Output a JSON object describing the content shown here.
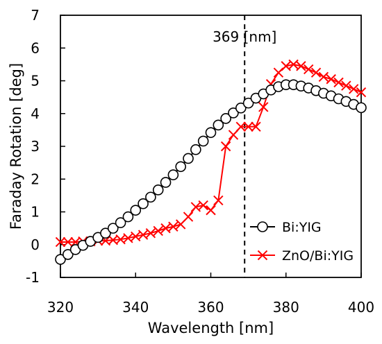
{
  "chart_data": {
    "type": "line",
    "xlabel": "Wavelength [nm]",
    "ylabel": "Faraday Rotation [deg]",
    "xlim": [
      320,
      400
    ],
    "ylim": [
      -1,
      7
    ],
    "xticks": [
      320,
      340,
      360,
      380,
      400
    ],
    "yticks": [
      -1,
      0,
      1,
      2,
      3,
      4,
      5,
      6,
      7
    ],
    "grid": false,
    "legend_position": "lower-right",
    "annotation": {
      "x": 369,
      "label": "369 [nm]",
      "style": "dashed-vertical-line"
    },
    "series": [
      {
        "name": "Bi:YIG",
        "color": "#000000",
        "marker": "open-circle",
        "x": [
          320,
          322,
          324,
          326,
          328,
          330,
          332,
          334,
          336,
          338,
          340,
          342,
          344,
          346,
          348,
          350,
          352,
          354,
          356,
          358,
          360,
          362,
          364,
          366,
          368,
          370,
          372,
          374,
          376,
          378,
          380,
          382,
          384,
          386,
          388,
          390,
          392,
          394,
          396,
          398,
          400
        ],
        "y": [
          -0.45,
          -0.3,
          -0.15,
          -0.02,
          0.1,
          0.22,
          0.35,
          0.5,
          0.67,
          0.85,
          1.05,
          1.25,
          1.45,
          1.67,
          1.9,
          2.13,
          2.38,
          2.63,
          2.9,
          3.16,
          3.42,
          3.65,
          3.85,
          4.02,
          4.17,
          4.32,
          4.47,
          4.6,
          4.72,
          4.82,
          4.88,
          4.88,
          4.84,
          4.78,
          4.7,
          4.62,
          4.54,
          4.45,
          4.37,
          4.28,
          4.18
        ]
      },
      {
        "name": "ZnO/Bi:YIG",
        "color": "#ff0000",
        "marker": "x",
        "x": [
          320,
          322,
          324,
          326,
          328,
          330,
          332,
          334,
          336,
          338,
          340,
          342,
          344,
          346,
          348,
          350,
          352,
          354,
          356,
          358,
          360,
          362,
          364,
          366,
          368,
          370,
          372,
          374,
          376,
          378,
          380,
          382,
          384,
          386,
          388,
          390,
          392,
          394,
          396,
          398,
          400
        ],
        "y": [
          0.08,
          0.08,
          0.08,
          0.1,
          0.1,
          0.12,
          0.12,
          0.14,
          0.16,
          0.2,
          0.25,
          0.3,
          0.35,
          0.42,
          0.5,
          0.55,
          0.62,
          0.85,
          1.15,
          1.2,
          1.05,
          1.35,
          3.0,
          3.35,
          3.6,
          3.6,
          3.6,
          4.2,
          4.9,
          5.25,
          5.45,
          5.5,
          5.45,
          5.35,
          5.25,
          5.12,
          5.05,
          4.95,
          4.85,
          4.75,
          4.65
        ]
      }
    ]
  }
}
